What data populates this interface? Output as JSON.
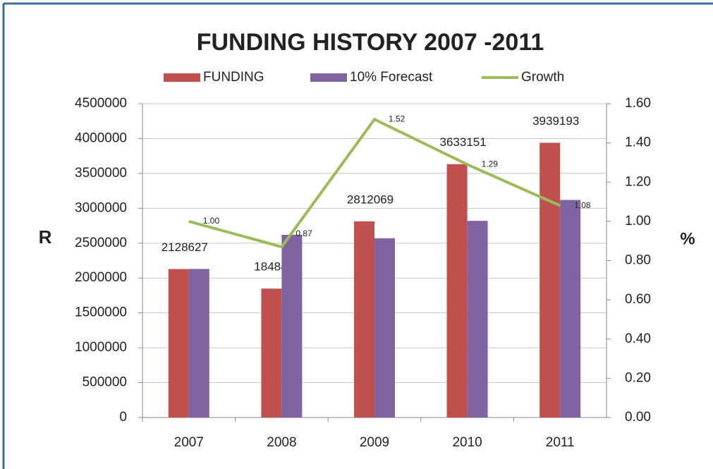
{
  "chart_data": {
    "type": "bar-line",
    "title": "FUNDING HISTORY 2007 -2011",
    "y_label": "R",
    "y2_label": "%",
    "categories": [
      "2007",
      "2008",
      "2009",
      "2010",
      "2011"
    ],
    "series": [
      {
        "name": "FUNDING",
        "color": "#c0504d",
        "values": [
          2128627,
          1848403,
          2812069,
          3633151,
          3939193
        ]
      },
      {
        "name": "10% Forecast",
        "color": "#8064a2",
        "values": [
          2130000,
          2620000,
          2570000,
          2820000,
          3120000
        ]
      },
      {
        "name": "Growth",
        "color": "#9bbb59",
        "axis": "y2",
        "values": [
          1.0,
          0.87,
          1.52,
          1.29,
          1.08
        ],
        "value_labels": [
          "1.00",
          "0.87",
          "1.52",
          "1.29",
          "1.08"
        ]
      }
    ],
    "ylim": [
      0,
      4500000
    ],
    "yticks": [
      0,
      500000,
      1000000,
      1500000,
      2000000,
      2500000,
      3000000,
      3500000,
      4000000,
      4500000
    ],
    "y2lim": [
      0,
      1.6
    ],
    "y2ticks": [
      {
        "value": 0,
        "label": "0.00"
      },
      {
        "value": 0.2,
        "label": "0.20"
      },
      {
        "value": 0.4,
        "label": "0.40"
      },
      {
        "value": 0.6,
        "label": "0.60"
      },
      {
        "value": 0.8,
        "label": "0.80"
      },
      {
        "value": 1.0,
        "label": "1.00"
      },
      {
        "value": 1.2,
        "label": "1.20"
      },
      {
        "value": 1.4,
        "label": "1.40"
      },
      {
        "value": 1.6,
        "label": "1.60"
      }
    ],
    "grid": true,
    "legend": "top"
  }
}
